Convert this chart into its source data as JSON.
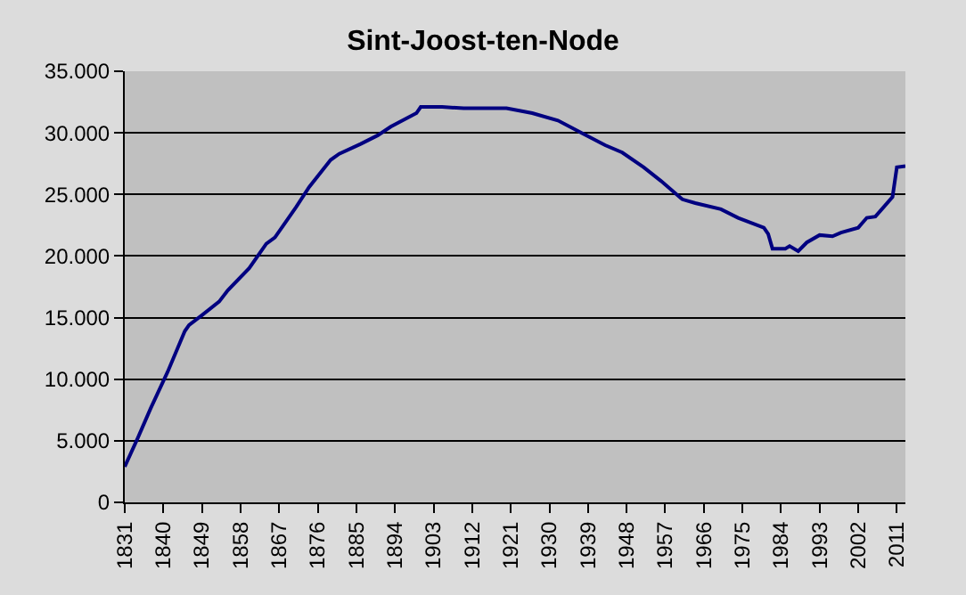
{
  "chart_data": {
    "type": "line",
    "title": "Sint-Joost-ten-Node",
    "x": [
      1831,
      1834,
      1837,
      1841,
      1845,
      1846,
      1849,
      1853,
      1855,
      1860,
      1864,
      1866,
      1871,
      1874,
      1879,
      1881,
      1886,
      1890,
      1893,
      1899,
      1900,
      1905,
      1910,
      1920,
      1926,
      1932,
      1938,
      1943,
      1947,
      1952,
      1956,
      1961,
      1964,
      1970,
      1974,
      1980,
      1981,
      1982,
      1985,
      1986,
      1988,
      1990,
      1993,
      1996,
      1998,
      2002,
      2004,
      2006,
      2008,
      2010,
      2011,
      2013
    ],
    "series": [
      {
        "color": "#000080",
        "values": [
          2900,
          5200,
          7600,
          10600,
          13900,
          14400,
          15200,
          16300,
          17200,
          19000,
          21000,
          21500,
          24000,
          25600,
          27800,
          28300,
          29100,
          29800,
          30500,
          31600,
          32100,
          32100,
          32000,
          32000,
          31600,
          31000,
          29900,
          29000,
          28400,
          27200,
          26100,
          24600,
          24300,
          23800,
          23100,
          22300,
          21800,
          20600,
          20600,
          20800,
          20400,
          21100,
          21700,
          21600,
          21900,
          22300,
          23100,
          23200,
          24000,
          24800,
          27200,
          27300
        ]
      }
    ],
    "xlim": [
      1831,
      2013
    ],
    "xticks": [
      1831,
      1840,
      1849,
      1858,
      1867,
      1876,
      1885,
      1894,
      1903,
      1912,
      1921,
      1930,
      1939,
      1948,
      1957,
      1966,
      1975,
      1984,
      1993,
      2002,
      2011
    ],
    "ylim": [
      0,
      35000
    ],
    "yticks": [
      {
        "value": 0,
        "label": "0"
      },
      {
        "value": 5000,
        "label": "5.000"
      },
      {
        "value": 10000,
        "label": "10.000"
      },
      {
        "value": 15000,
        "label": "15.000"
      },
      {
        "value": 20000,
        "label": "20.000"
      },
      {
        "value": 25000,
        "label": "25.000"
      },
      {
        "value": 30000,
        "label": "30.000"
      },
      {
        "value": 35000,
        "label": "35.000"
      }
    ],
    "grid": "y",
    "marker": "none",
    "line_style": "solid"
  }
}
